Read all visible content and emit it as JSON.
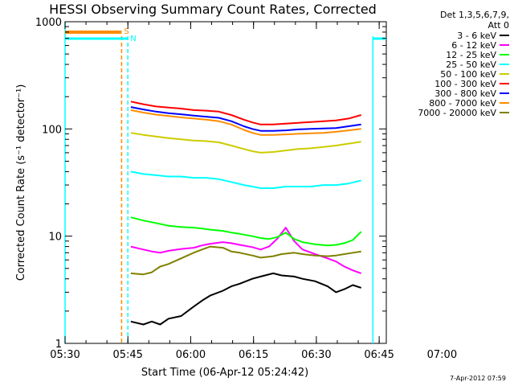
{
  "chart_data": {
    "type": "line",
    "title": "HESSI Observing Summary Count Rates, Corrected",
    "xlabel": "Start Time (06-Apr-12 05:24:42)",
    "ylabel": "Corrected Count Rate (s⁻¹ detector⁻¹)",
    "ylog": true,
    "ylim": [
      1,
      1000
    ],
    "xlim_minutes": [
      5.3,
      82.0
    ],
    "x_tick_labels": [
      "05:30",
      "05:45",
      "06:00",
      "06:15",
      "06:30",
      "06:45",
      "07:00"
    ],
    "x_tick_minutes": [
      5.3,
      20.3,
      35.3,
      50.3,
      65.3,
      80.3,
      95.3
    ],
    "y_tick_labels": [
      "1",
      "10",
      "100",
      "1000"
    ],
    "y_tick_values": [
      1,
      10,
      100,
      1000
    ],
    "legend_header": [
      "Det 1,3,5,6,7,9,",
      "Att 0"
    ],
    "series": [
      {
        "name": "3 - 6 keV",
        "color": "#000000",
        "x": [
          21,
          24,
          26,
          28,
          30,
          33,
          36,
          38,
          40,
          43,
          45,
          47,
          50,
          52,
          55,
          57,
          60,
          62,
          65,
          68,
          70,
          72,
          74,
          76
        ],
        "y": [
          1.6,
          1.5,
          1.6,
          1.5,
          1.7,
          1.8,
          2.2,
          2.5,
          2.8,
          3.1,
          3.4,
          3.6,
          4.0,
          4.2,
          4.5,
          4.3,
          4.2,
          4.0,
          3.8,
          3.4,
          3.0,
          3.2,
          3.5,
          3.3
        ]
      },
      {
        "name": "6 - 12 keV",
        "color": "#ff00ff",
        "x": [
          21,
          24,
          26,
          28,
          30,
          33,
          36,
          38,
          40,
          43,
          45,
          47,
          50,
          52,
          54,
          56,
          58,
          60,
          62,
          65,
          68,
          70,
          72,
          74,
          76
        ],
        "y": [
          8.0,
          7.5,
          7.2,
          7.0,
          7.3,
          7.6,
          7.8,
          8.2,
          8.5,
          8.8,
          8.6,
          8.3,
          7.9,
          7.5,
          8.0,
          9.5,
          12.0,
          9.0,
          7.5,
          6.8,
          6.2,
          5.8,
          5.2,
          4.8,
          4.5
        ]
      },
      {
        "name": "12 - 25 keV",
        "color": "#00ff00",
        "x": [
          21,
          24,
          26,
          28,
          30,
          33,
          36,
          38,
          40,
          43,
          45,
          47,
          50,
          52,
          54,
          56,
          58,
          60,
          62,
          65,
          68,
          70,
          72,
          74,
          76
        ],
        "y": [
          15.0,
          14.0,
          13.5,
          13.0,
          12.5,
          12.2,
          12.0,
          11.8,
          11.5,
          11.2,
          10.8,
          10.5,
          10.0,
          9.6,
          9.4,
          9.8,
          10.8,
          9.4,
          8.8,
          8.4,
          8.2,
          8.3,
          8.6,
          9.2,
          11.0
        ]
      },
      {
        "name": "25 - 50 keV",
        "color": "#00ffff",
        "x": [
          21,
          24,
          27,
          30,
          33,
          36,
          39,
          42,
          45,
          48,
          50,
          52,
          55,
          58,
          61,
          64,
          67,
          70,
          73,
          76
        ],
        "y": [
          40,
          38,
          37,
          36,
          36,
          35,
          35,
          34,
          32,
          30,
          29,
          28,
          28,
          29,
          29,
          29,
          30,
          30,
          31,
          33
        ]
      },
      {
        "name": "50 - 100 keV",
        "color": "#cccc00",
        "x": [
          21,
          24,
          27,
          30,
          33,
          36,
          39,
          42,
          45,
          48,
          50,
          52,
          55,
          58,
          61,
          64,
          67,
          70,
          73,
          76
        ],
        "y": [
          92,
          88,
          85,
          82,
          80,
          78,
          77,
          75,
          70,
          65,
          62,
          60,
          61,
          63,
          65,
          66,
          68,
          70,
          73,
          76
        ]
      },
      {
        "name": "100 - 300 keV",
        "color": "#ff0000",
        "x": [
          21,
          24,
          27,
          30,
          33,
          36,
          39,
          42,
          45,
          48,
          50,
          52,
          55,
          58,
          61,
          64,
          67,
          70,
          73,
          76
        ],
        "y": [
          180,
          170,
          162,
          158,
          155,
          150,
          148,
          145,
          135,
          122,
          115,
          110,
          110,
          112,
          114,
          116,
          118,
          120,
          125,
          135
        ]
      },
      {
        "name": "300 - 800 keV",
        "color": "#0000ff",
        "x": [
          21,
          24,
          27,
          30,
          33,
          36,
          39,
          42,
          45,
          48,
          50,
          52,
          55,
          58,
          61,
          64,
          67,
          70,
          73,
          76
        ],
        "y": [
          160,
          152,
          145,
          140,
          137,
          133,
          130,
          127,
          118,
          106,
          100,
          96,
          96,
          97,
          99,
          100,
          101,
          102,
          106,
          110
        ]
      },
      {
        "name": "800 - 7000 keV",
        "color": "#ff8c00",
        "x": [
          21,
          24,
          27,
          30,
          33,
          36,
          39,
          42,
          45,
          48,
          50,
          52,
          55,
          58,
          61,
          64,
          67,
          70,
          73,
          76
        ],
        "y": [
          150,
          142,
          136,
          132,
          128,
          125,
          122,
          118,
          110,
          98,
          92,
          88,
          88,
          89,
          90,
          91,
          92,
          94,
          97,
          100
        ]
      },
      {
        "name": "7000 - 20000 keV",
        "color": "#808000",
        "x": [
          21,
          24,
          26,
          28,
          30,
          33,
          36,
          38,
          40,
          43,
          45,
          47,
          50,
          52,
          55,
          57,
          60,
          62,
          65,
          68,
          70,
          72,
          74,
          76
        ],
        "y": [
          4.5,
          4.4,
          4.6,
          5.2,
          5.5,
          6.2,
          7.0,
          7.5,
          8.0,
          7.8,
          7.2,
          7.0,
          6.6,
          6.3,
          6.5,
          6.8,
          7.0,
          6.8,
          6.6,
          6.5,
          6.6,
          6.8,
          7.0,
          7.2
        ]
      }
    ],
    "flags": {
      "S_label": "S",
      "N_label": "N",
      "S_color": "#ff8c00",
      "N_color": "#00ffff"
    }
  },
  "timestamp": "7-Apr-2012 07:59"
}
